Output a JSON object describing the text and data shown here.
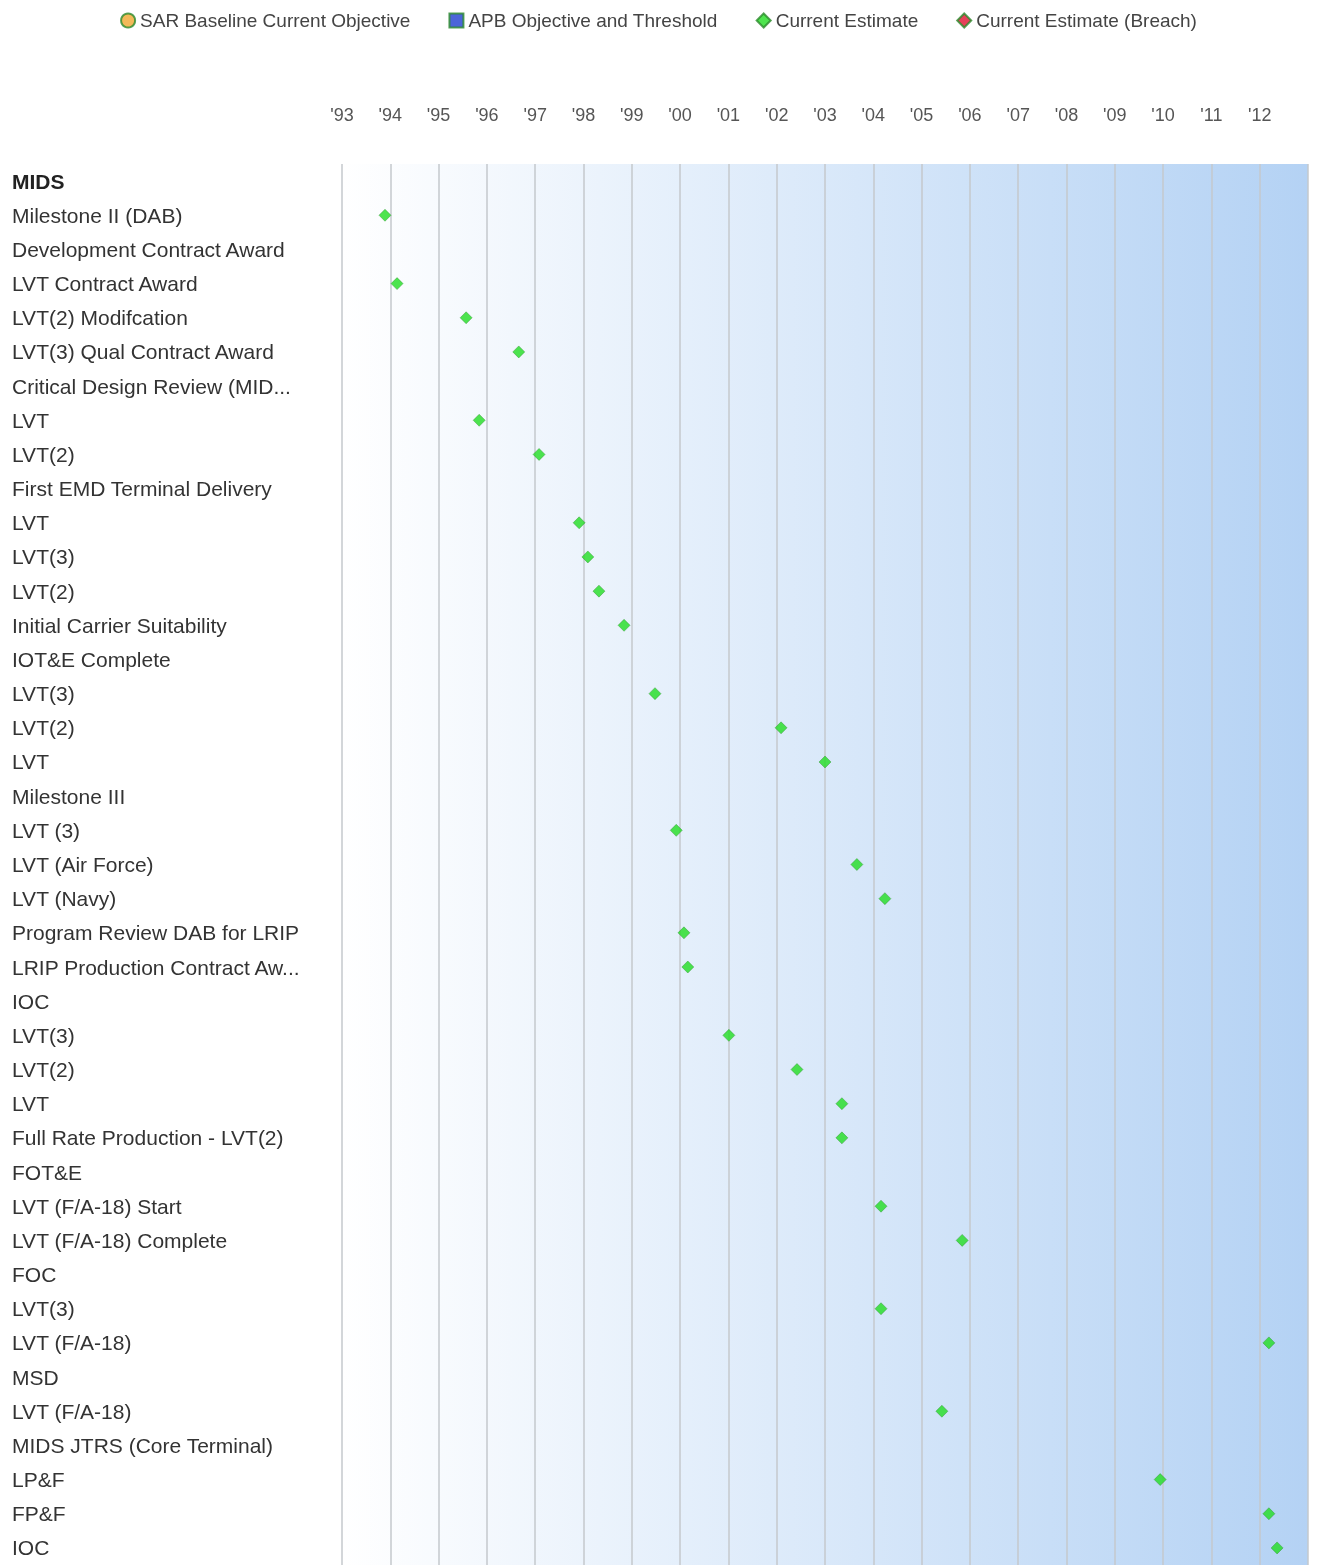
{
  "chart_data": {
    "type": "scatter",
    "categories": [
      "MIDS",
      "Milestone II (DAB)",
      "Development Contract Award",
      "LVT Contract Award",
      "LVT(2) Modifcation",
      "LVT(3) Qual Contract Award",
      "Critical Design Review (MID...",
      "LVT",
      "LVT(2)",
      "First EMD Terminal Delivery",
      "LVT",
      "LVT(3)",
      "LVT(2)",
      "Initial Carrier Suitability",
      "IOT&E Complete",
      "LVT(3)",
      "LVT(2)",
      "LVT",
      "Milestone III",
      "LVT (3)",
      "LVT (Air Force)",
      "LVT (Navy)",
      "Program Review DAB for LRIP",
      "LRIP Production Contract Aw...",
      "IOC",
      "LVT(3)",
      "LVT(2)",
      "LVT",
      "Full Rate Production - LVT(2)",
      "FOT&E",
      "LVT (F/A-18) Start",
      "LVT (F/A-18) Complete",
      "FOC",
      "LVT(3)",
      "LVT (F/A-18)",
      "MSD",
      "LVT (F/A-18)",
      "MIDS JTRS (Core Terminal)",
      "LP&F",
      "FP&F",
      "IOC"
    ],
    "series": [
      {
        "name": "SAR Baseline Current Objective",
        "color": "#f0a830",
        "marker": "circle",
        "values": [
          null,
          null,
          null,
          null,
          null,
          null,
          null,
          null,
          null,
          null,
          null,
          null,
          null,
          null,
          null,
          null,
          null,
          null,
          null,
          null,
          null,
          null,
          null,
          null,
          null,
          null,
          null,
          null,
          null,
          null,
          null,
          null,
          null,
          null,
          null,
          null,
          null,
          null,
          null,
          null,
          null
        ]
      },
      {
        "name": "APB Objective and Threshold",
        "color": "#1f3fd0",
        "marker": "square",
        "values": [
          null,
          null,
          null,
          null,
          null,
          null,
          null,
          null,
          null,
          null,
          null,
          null,
          null,
          null,
          null,
          null,
          null,
          null,
          null,
          null,
          null,
          null,
          null,
          null,
          null,
          null,
          null,
          null,
          null,
          null,
          null,
          null,
          null,
          null,
          null,
          null,
          null,
          null,
          null,
          null,
          null
        ]
      },
      {
        "name": "Current Estimate",
        "color": "#22dd22",
        "marker": "diamond",
        "values": [
          null,
          1993.89,
          null,
          1994.14,
          1995.57,
          1996.66,
          null,
          1995.84,
          1997.08,
          null,
          1997.91,
          1998.09,
          1998.32,
          1998.84,
          null,
          1999.48,
          2002.09,
          2003.0,
          null,
          1999.92,
          2003.66,
          2004.24,
          2000.08,
          2000.16,
          null,
          2001.01,
          2002.42,
          2003.35,
          2003.35,
          null,
          2004.16,
          2005.84,
          null,
          2004.16,
          2012.19,
          null,
          2005.42,
          null,
          2009.94,
          2012.19,
          2012.36
        ]
      },
      {
        "name": "Current Estimate (Breach)",
        "color": "#e01030",
        "marker": "diamond",
        "values": [
          null,
          null,
          null,
          null,
          null,
          null,
          null,
          null,
          null,
          null,
          null,
          null,
          null,
          null,
          null,
          null,
          null,
          null,
          null,
          null,
          null,
          null,
          null,
          null,
          null,
          null,
          null,
          null,
          null,
          null,
          null,
          null,
          null,
          null,
          null,
          null,
          null,
          null,
          null,
          null,
          null
        ]
      }
    ],
    "orientation": "horizontal",
    "xlim": [
      1993,
      2013
    ],
    "xticks": [
      {
        "value": 1993,
        "label": "'93"
      },
      {
        "value": 1994,
        "label": "'94"
      },
      {
        "value": 1995,
        "label": "'95"
      },
      {
        "value": 1996,
        "label": "'96"
      },
      {
        "value": 1997,
        "label": "'97"
      },
      {
        "value": 1998,
        "label": "'98"
      },
      {
        "value": 1999,
        "label": "'99"
      },
      {
        "value": 2000,
        "label": "'00"
      },
      {
        "value": 2001,
        "label": "'01"
      },
      {
        "value": 2002,
        "label": "'02"
      },
      {
        "value": 2003,
        "label": "'03"
      },
      {
        "value": 2004,
        "label": "'04"
      },
      {
        "value": 2005,
        "label": "'05"
      },
      {
        "value": 2006,
        "label": "'06"
      },
      {
        "value": 2007,
        "label": "'07"
      },
      {
        "value": 2008,
        "label": "'08"
      },
      {
        "value": 2009,
        "label": "'09"
      },
      {
        "value": 2010,
        "label": "'10"
      },
      {
        "value": 2011,
        "label": "'11"
      },
      {
        "value": 2012,
        "label": "'12"
      },
      {
        "value": 2013,
        "label": null
      }
    ],
    "grid": "x",
    "legend": "top"
  }
}
